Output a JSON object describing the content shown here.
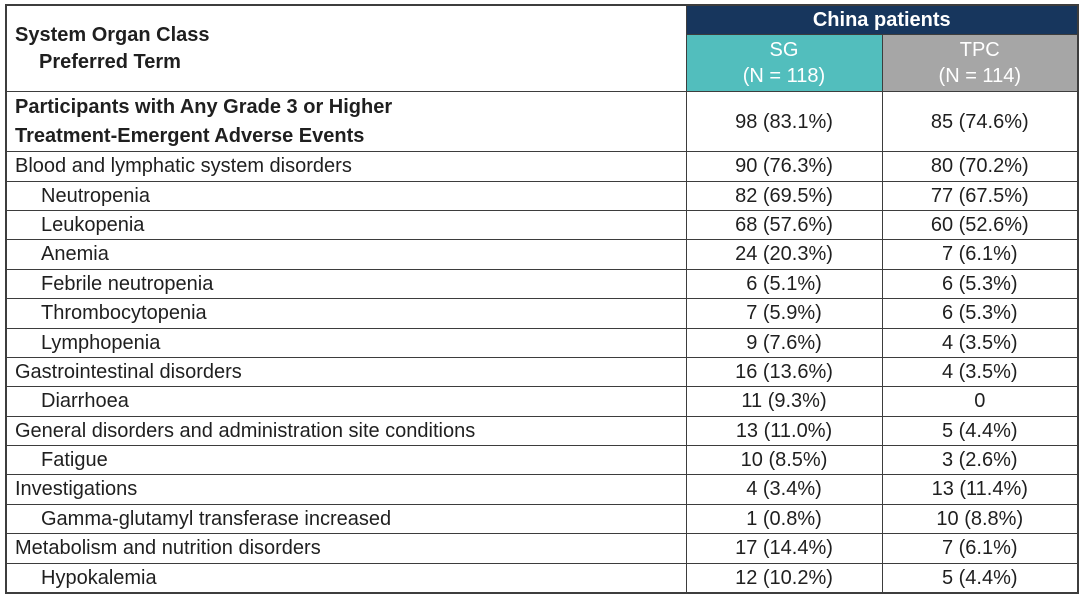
{
  "colors": {
    "navy": "#17365d",
    "teal": "#52bebd",
    "gray": "#a6a6a6",
    "border": "#3d3d3d",
    "text": "#1f1f1f",
    "header_text": "#ffffff"
  },
  "table": {
    "soc_header": "System Organ Class",
    "pt_header": "Preferred Term",
    "group_header": "China patients",
    "columns": [
      {
        "label": "SG",
        "n_label": "(N = 118)"
      },
      {
        "label": "TPC",
        "n_label": "(N = 114)"
      }
    ],
    "summary_row": {
      "label_line1": "Participants with Any Grade 3 or Higher",
      "label_line2": "Treatment-Emergent Adverse Events",
      "sg": "98 (83.1%)",
      "tpc": "85 (74.6%)"
    },
    "rows": [
      {
        "term": "Blood and lymphatic system disorders",
        "indent": false,
        "sg": "90 (76.3%)",
        "tpc": "80 (70.2%)"
      },
      {
        "term": "Neutropenia",
        "indent": true,
        "sg": "82 (69.5%)",
        "tpc": "77 (67.5%)"
      },
      {
        "term": "Leukopenia",
        "indent": true,
        "sg": "68 (57.6%)",
        "tpc": "60 (52.6%)"
      },
      {
        "term": "Anemia",
        "indent": true,
        "sg": "24 (20.3%)",
        "tpc": "7 (6.1%)"
      },
      {
        "term": "Febrile neutropenia",
        "indent": true,
        "sg": "6 (5.1%)",
        "tpc": "6 (5.3%)"
      },
      {
        "term": "Thrombocytopenia",
        "indent": true,
        "sg": "7 (5.9%)",
        "tpc": "6 (5.3%)"
      },
      {
        "term": "Lymphopenia",
        "indent": true,
        "sg": "9 (7.6%)",
        "tpc": "4 (3.5%)"
      },
      {
        "term": "Gastrointestinal disorders",
        "indent": false,
        "sg": "16 (13.6%)",
        "tpc": "4 (3.5%)"
      },
      {
        "term": "Diarrhoea",
        "indent": true,
        "sg": "11 (9.3%)",
        "tpc": "0"
      },
      {
        "term": "General disorders and administration site conditions",
        "indent": false,
        "sg": "13 (11.0%)",
        "tpc": "5 (4.4%)"
      },
      {
        "term": "Fatigue",
        "indent": true,
        "sg": "10 (8.5%)",
        "tpc": "3 (2.6%)"
      },
      {
        "term": "Investigations",
        "indent": false,
        "sg": "4 (3.4%)",
        "tpc": "13 (11.4%)"
      },
      {
        "term": "Gamma-glutamyl transferase increased",
        "indent": true,
        "sg": "1 (0.8%)",
        "tpc": "10 (8.8%)"
      },
      {
        "term": "Metabolism and nutrition disorders",
        "indent": false,
        "sg": "17 (14.4%)",
        "tpc": "7 (6.1%)"
      },
      {
        "term": "Hypokalemia",
        "indent": true,
        "sg": "12 (10.2%)",
        "tpc": "5 (4.4%)"
      }
    ]
  }
}
